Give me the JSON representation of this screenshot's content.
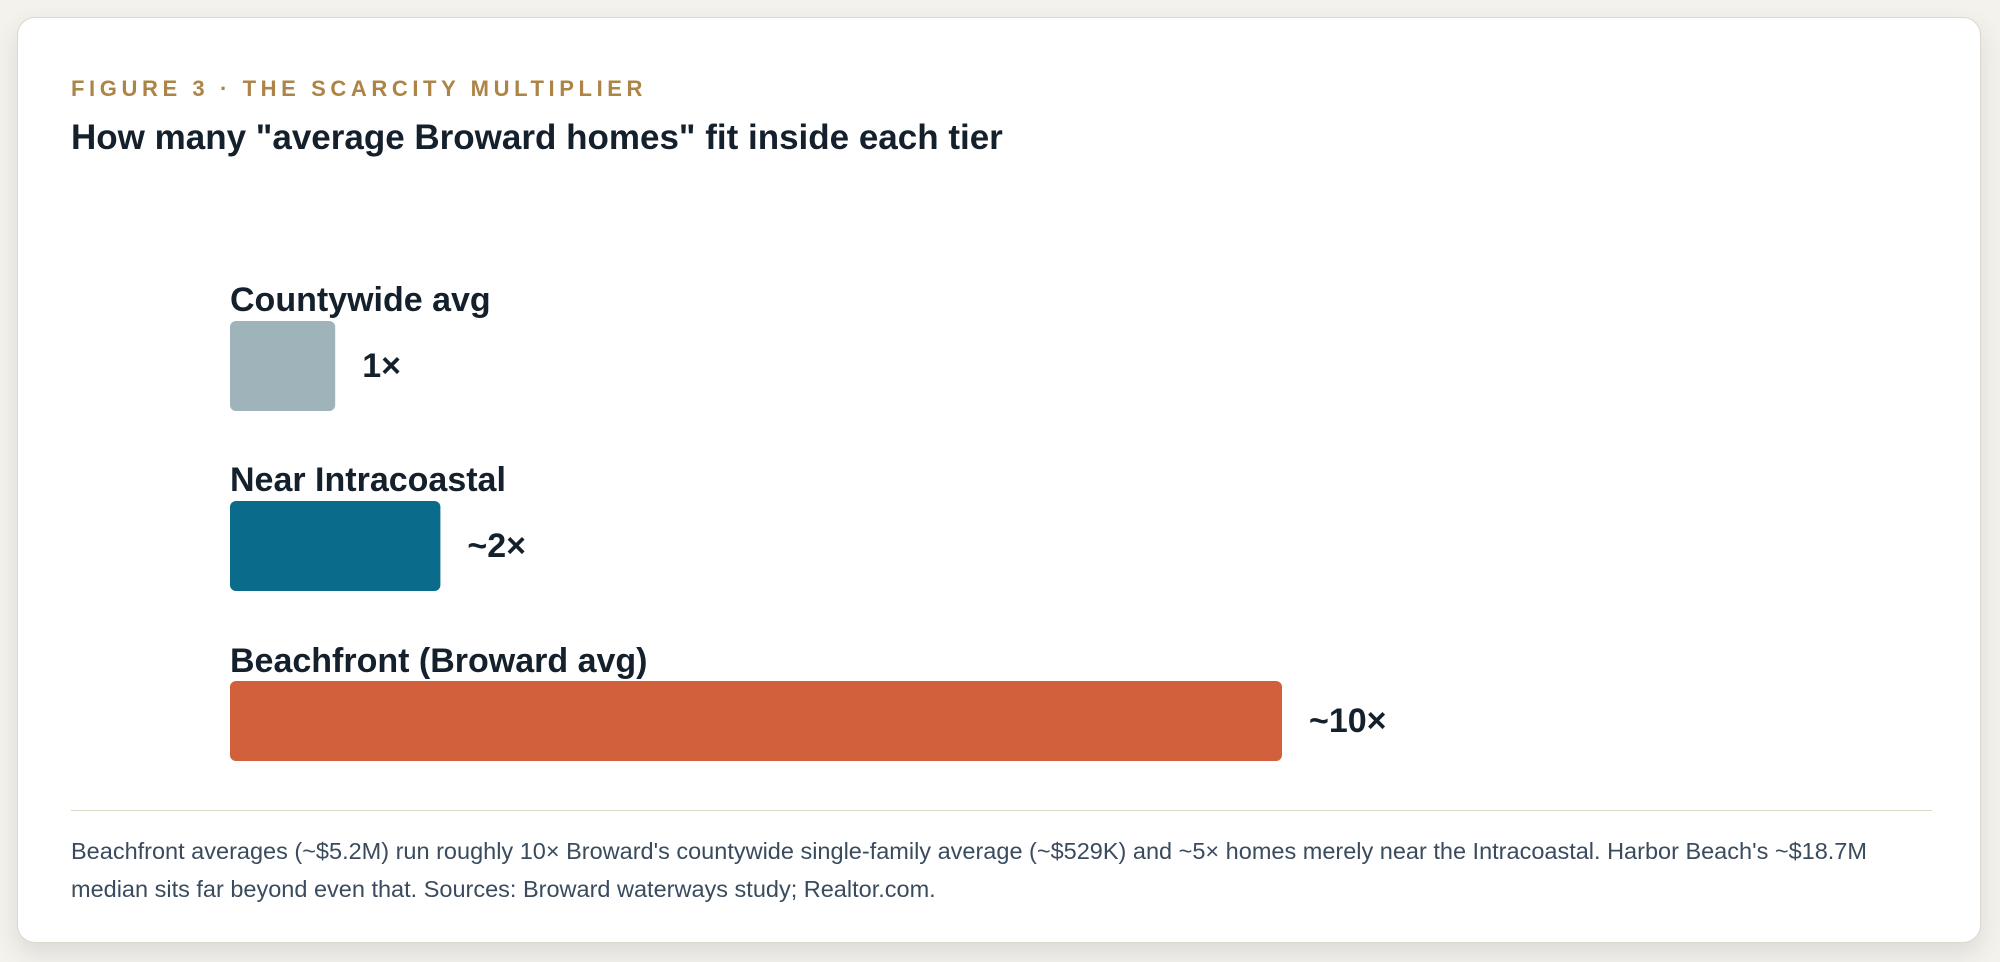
{
  "figure": {
    "eyebrow": "FIGURE 3 · THE SCARCITY MULTIPLIER",
    "title": "How many \"average Broward homes\" fit inside each tier",
    "caption": "Beachfront averages (~$5.2M) run roughly 10× Broward's countywide single-family average (~$529K) and ~5× homes merely near the Intracoastal. Harbor Beach's ~$18.7M median sits far beyond even that. Sources: Broward waterways study; Realtor.com."
  },
  "chart_data": {
    "type": "bar",
    "orientation": "horizontal",
    "title": "How many \"average Broward homes\" fit inside each tier",
    "categories": [
      "Countywide avg",
      "Near Intracoastal",
      "Beachfront (Broward avg)"
    ],
    "values": [
      1,
      2,
      10
    ],
    "value_labels": [
      "1×",
      "~2×",
      "~10×"
    ],
    "colors": [
      "#9eb3ba",
      "#0b6b8a",
      "#d2603d"
    ],
    "xlim": [
      0,
      10
    ],
    "grid": false,
    "legend": "none"
  }
}
